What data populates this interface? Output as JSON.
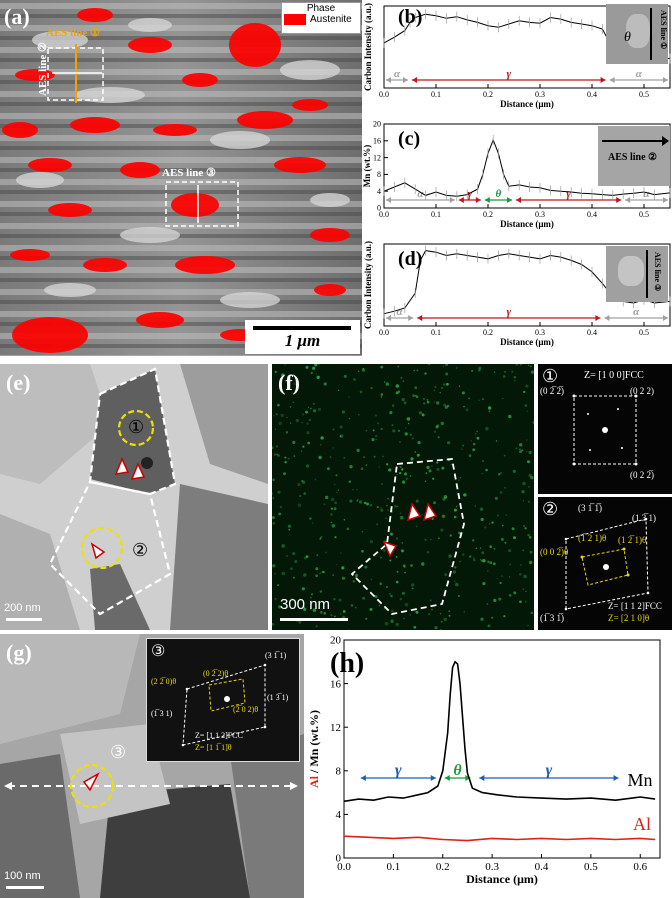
{
  "panels": {
    "a": {
      "label": "(a)",
      "legend_title": "Phase",
      "legend_entry": "Austenite",
      "legend_color": "#ff0000",
      "line1": "AES line ①",
      "line2": "AES line ②",
      "line3": "AES line ③",
      "scalebar": "1 μm"
    },
    "b": {
      "label": "(b)",
      "inset_label": "AES line ①",
      "inset_theta": "θ"
    },
    "c": {
      "label": "(c)",
      "inset_label": "AES line ②"
    },
    "d": {
      "label": "(d)",
      "inset_label": "AES line ③"
    },
    "e": {
      "label": "(e)",
      "circle1": "①",
      "circle2": "②",
      "scalebar": "200 nm"
    },
    "f": {
      "label": "(f)",
      "scalebar": "300 nm"
    },
    "saed1": {
      "num": "①",
      "zone": "Z= [1 0 0]FCC",
      "spots": [
        "(0 2̅ 2̅)",
        "(0 2 2)",
        "(0 2 2̅)"
      ]
    },
    "saed2": {
      "num": "②",
      "zone_fcc": "Z= [1 1 2]FCC",
      "zone_theta": "Z= [2 1 0]θ",
      "spots": [
        "(3 1̅ 1̅)",
        "(1 3̅ 1)",
        "(1̅ 3 1̅)",
        "(0 0 2̅)θ",
        "(1̅ 2 1)θ",
        "(1 2̅ 1)θ"
      ]
    },
    "g": {
      "label": "(g)",
      "circle3": "③",
      "scalebar": "100 nm",
      "inset_num": "③",
      "zone_fcc": "Z= [1 1 2]FCC",
      "zone_theta": "Z= [1 1̅ 1]θ",
      "spots": [
        "(2 2̅ 0)θ",
        "(0 2̅ 2)θ",
        "(2̅ 0 2)θ",
        "(3 1̅ 1)",
        "(1 3̅ 1)",
        "(1̅ 3 1)"
      ]
    },
    "h": {
      "label": "(h)"
    }
  },
  "chart_data": [
    {
      "id": "b",
      "type": "line",
      "xlabel": "Distance (μm)",
      "ylabel": "Carbon Intensity (a.u.)",
      "xlim": [
        0,
        0.55
      ],
      "xticks": [
        "0.0",
        "0.1",
        "0.2",
        "0.3",
        "0.4",
        "0.5"
      ],
      "phase_labels": [
        {
          "text": "α",
          "x0": 0.0,
          "x1": 0.05,
          "color": "#a0a0a0"
        },
        {
          "text": "γ",
          "x0": 0.05,
          "x1": 0.43,
          "color": "#c0161c"
        },
        {
          "text": "α",
          "x0": 0.43,
          "x1": 0.55,
          "color": "#a0a0a0"
        }
      ],
      "series": [
        {
          "x": [
            0.0,
            0.02,
            0.04,
            0.05,
            0.06,
            0.08,
            0.1,
            0.12,
            0.14,
            0.16,
            0.18,
            0.2,
            0.22,
            0.24,
            0.26,
            0.28,
            0.3,
            0.32,
            0.34,
            0.36,
            0.38,
            0.4,
            0.42,
            0.43,
            0.44,
            0.46,
            0.48,
            0.5,
            0.52,
            0.55
          ],
          "y": [
            0.55,
            0.62,
            0.7,
            0.8,
            0.86,
            0.9,
            0.88,
            0.85,
            0.87,
            0.83,
            0.8,
            0.76,
            0.74,
            0.78,
            0.82,
            0.8,
            0.79,
            0.86,
            0.84,
            0.8,
            0.78,
            0.76,
            0.72,
            0.6,
            0.5,
            0.42,
            0.4,
            0.38,
            0.36,
            0.36
          ]
        }
      ]
    },
    {
      "id": "c",
      "type": "line",
      "xlabel": "Distance (μm)",
      "ylabel": "Mn (wt.%)",
      "xlim": [
        0,
        0.55
      ],
      "ylim": [
        0,
        20
      ],
      "xticks": [
        "0.0",
        "0.1",
        "0.2",
        "0.3",
        "0.4",
        "0.5"
      ],
      "yticks": [
        "0",
        "4",
        "8",
        "12",
        "16",
        "20"
      ],
      "phase_labels": [
        {
          "text": "α",
          "x0": 0.0,
          "x1": 0.14,
          "color": "#a0a0a0"
        },
        {
          "text": "γ",
          "x0": 0.14,
          "x1": 0.19,
          "color": "#c0161c"
        },
        {
          "text": "θ",
          "x0": 0.19,
          "x1": 0.25,
          "color": "#1a9a3a"
        },
        {
          "text": "γ",
          "x0": 0.25,
          "x1": 0.46,
          "color": "#c0161c"
        },
        {
          "text": "α",
          "x0": 0.46,
          "x1": 0.55,
          "color": "#a0a0a0"
        }
      ],
      "series": [
        {
          "x": [
            0.0,
            0.02,
            0.04,
            0.06,
            0.08,
            0.1,
            0.12,
            0.14,
            0.16,
            0.18,
            0.19,
            0.2,
            0.21,
            0.22,
            0.23,
            0.24,
            0.26,
            0.28,
            0.3,
            0.32,
            0.34,
            0.36,
            0.38,
            0.4,
            0.42,
            0.44,
            0.46,
            0.48,
            0.5,
            0.52,
            0.55
          ],
          "y": [
            4.0,
            5.0,
            6.0,
            4.5,
            3.0,
            3.8,
            3.0,
            2.8,
            3.2,
            4.5,
            8.0,
            13.0,
            16.2,
            13.0,
            8.0,
            5.2,
            5.5,
            5.0,
            4.8,
            4.2,
            4.0,
            3.8,
            3.5,
            3.4,
            3.2,
            3.0,
            3.3,
            3.5,
            3.8,
            3.2,
            3.6
          ]
        }
      ]
    },
    {
      "id": "d",
      "type": "line",
      "xlabel": "Distance (μm)",
      "ylabel": "Carbon Intensity (a.u.)",
      "xlim": [
        0,
        0.55
      ],
      "xticks": [
        "0.0",
        "0.1",
        "0.2",
        "0.3",
        "0.4",
        "0.5"
      ],
      "phase_labels": [
        {
          "text": "α",
          "x0": 0.0,
          "x1": 0.06,
          "color": "#a0a0a0"
        },
        {
          "text": "γ",
          "x0": 0.06,
          "x1": 0.42,
          "color": "#c0161c"
        },
        {
          "text": "α",
          "x0": 0.42,
          "x1": 0.55,
          "color": "#a0a0a0"
        }
      ],
      "series": [
        {
          "x": [
            0.0,
            0.02,
            0.04,
            0.06,
            0.07,
            0.08,
            0.1,
            0.12,
            0.14,
            0.16,
            0.18,
            0.2,
            0.22,
            0.24,
            0.26,
            0.28,
            0.3,
            0.32,
            0.34,
            0.36,
            0.38,
            0.4,
            0.42,
            0.44,
            0.46,
            0.48,
            0.5,
            0.52,
            0.55
          ],
          "y": [
            0.15,
            0.18,
            0.22,
            0.4,
            0.8,
            0.92,
            0.9,
            0.86,
            0.88,
            0.86,
            0.84,
            0.82,
            0.86,
            0.88,
            0.86,
            0.84,
            0.82,
            0.86,
            0.84,
            0.8,
            0.75,
            0.66,
            0.52,
            0.36,
            0.3,
            0.28,
            0.32,
            0.28,
            0.3
          ]
        }
      ]
    },
    {
      "id": "h",
      "type": "line",
      "xlabel": "Distance (μm)",
      "ylabel_parts": [
        {
          "text": "Al",
          "color": "#e0201a"
        },
        {
          "text": " / Mn (wt.%)",
          "color": "#000000"
        }
      ],
      "xlim": [
        0,
        0.64
      ],
      "ylim": [
        0,
        20
      ],
      "xticks": [
        "0.0",
        "0.1",
        "0.2",
        "0.3",
        "0.4",
        "0.5",
        "0.6"
      ],
      "yticks": [
        "0",
        "4",
        "8",
        "12",
        "16",
        "20"
      ],
      "phase_labels": [
        {
          "text": "γ",
          "x0": 0.03,
          "x1": 0.19,
          "color": "#1a5fb4"
        },
        {
          "text": "θ",
          "x0": 0.2,
          "x1": 0.26,
          "color": "#1a9a3a"
        },
        {
          "text": "γ",
          "x0": 0.27,
          "x1": 0.56,
          "color": "#1a5fb4"
        }
      ],
      "series": [
        {
          "name": "Mn",
          "color": "#000000",
          "x": [
            0.0,
            0.03,
            0.06,
            0.09,
            0.12,
            0.15,
            0.17,
            0.19,
            0.2,
            0.21,
            0.215,
            0.22,
            0.225,
            0.23,
            0.235,
            0.24,
            0.245,
            0.25,
            0.26,
            0.28,
            0.31,
            0.35,
            0.4,
            0.45,
            0.5,
            0.55,
            0.6,
            0.63
          ],
          "y": [
            5.2,
            5.4,
            5.3,
            5.6,
            5.5,
            5.8,
            6.0,
            6.6,
            8.0,
            11.5,
            15.0,
            17.5,
            18.0,
            17.8,
            16.0,
            13.0,
            10.0,
            7.8,
            6.4,
            6.0,
            5.8,
            5.6,
            5.5,
            5.4,
            5.5,
            5.3,
            5.6,
            5.4
          ]
        },
        {
          "name": "Al",
          "color": "#e0201a",
          "x": [
            0.0,
            0.05,
            0.1,
            0.15,
            0.2,
            0.25,
            0.3,
            0.35,
            0.4,
            0.45,
            0.5,
            0.55,
            0.6,
            0.63
          ],
          "y": [
            2.0,
            1.9,
            1.8,
            1.9,
            1.7,
            1.6,
            1.8,
            1.7,
            1.8,
            1.7,
            1.8,
            1.7,
            1.8,
            1.7
          ]
        }
      ]
    }
  ]
}
